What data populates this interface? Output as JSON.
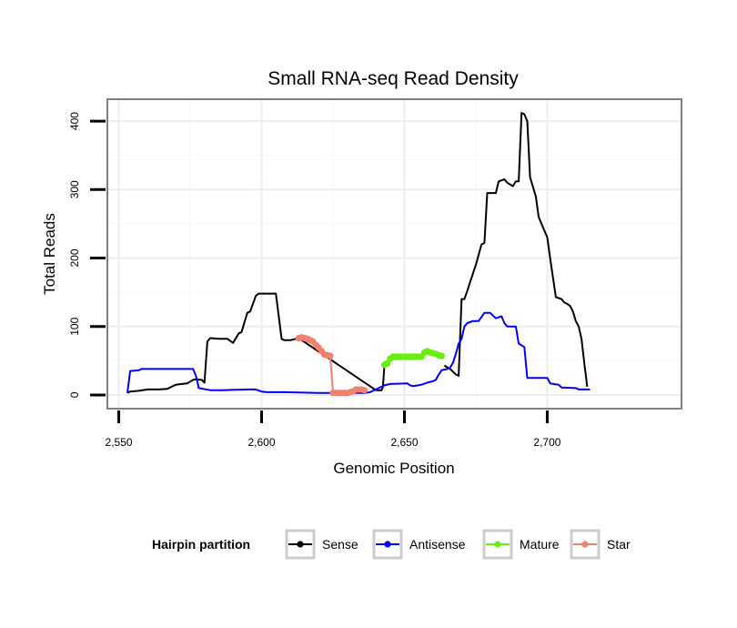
{
  "chart_data": {
    "type": "line",
    "title": "Small RNA-seq Read Density",
    "xlabel": "Genomic Position",
    "ylabel": "Total Reads",
    "xlim": [
      2546,
      2747
    ],
    "ylim": [
      -20,
      432
    ],
    "x_ticks": [
      {
        "value": 2550,
        "label": "2,550"
      },
      {
        "value": 2600,
        "label": "2,600"
      },
      {
        "value": 2650,
        "label": "2,650"
      },
      {
        "value": 2700,
        "label": "2,700"
      }
    ],
    "y_ticks": [
      {
        "value": 0,
        "label": "0"
      },
      {
        "value": 100,
        "label": "100"
      },
      {
        "value": 200,
        "label": "200"
      },
      {
        "value": 300,
        "label": "300"
      },
      {
        "value": 400,
        "label": "400"
      }
    ],
    "legend": {
      "title": "Hairpin partition",
      "position": "bottom",
      "entries": [
        {
          "name": "Sense",
          "color": "#000000"
        },
        {
          "name": "Antisense",
          "color": "#0000ff"
        },
        {
          "name": "Mature",
          "color": "#66ee11"
        },
        {
          "name": "Star",
          "color": "#f08070"
        }
      ]
    },
    "series": [
      {
        "name": "Sense",
        "color": "#000000",
        "points": false,
        "x": [
          2553,
          2554,
          2557,
          2560,
          2564,
          2567,
          2570,
          2572,
          2574,
          2576,
          2577,
          2579,
          2580,
          2581,
          2582,
          2585,
          2588,
          2590,
          2592,
          2593,
          2595,
          2596,
          2598,
          2599,
          2601,
          2602,
          2605,
          2607,
          2608,
          2610,
          2612,
          2613,
          2640,
          2642,
          2642.5,
          2643
        ],
        "y": [
          3,
          5,
          6,
          8,
          8,
          9,
          15,
          16,
          17,
          22,
          23,
          22,
          18,
          78,
          83,
          82,
          82,
          76,
          90,
          92,
          120,
          122,
          145,
          148,
          148,
          148,
          148,
          82,
          80,
          80,
          82,
          83,
          7,
          7,
          12,
          44
        ]
      },
      {
        "name": "Sense",
        "color": "#000000",
        "points": false,
        "x": [
          2664,
          2666,
          2668,
          2669,
          2670,
          2671,
          2672,
          2673,
          2675,
          2677,
          2678,
          2679,
          2680,
          2682,
          2683,
          2685,
          2686,
          2688,
          2689,
          2690,
          2691,
          2692,
          2693,
          2694,
          2696,
          2697,
          2699,
          2700,
          2701,
          2703,
          2705,
          2706,
          2707,
          2708,
          2709,
          2710,
          2711,
          2712,
          2713,
          2714
        ],
        "y": [
          43,
          38,
          30,
          28,
          140,
          140,
          152,
          165,
          190,
          220,
          222,
          295,
          295,
          295,
          312,
          315,
          310,
          305,
          312,
          312,
          412,
          410,
          400,
          318,
          290,
          260,
          240,
          230,
          200,
          143,
          140,
          135,
          133,
          130,
          122,
          108,
          100,
          82,
          45,
          12
        ]
      },
      {
        "name": "Antisense",
        "color": "#0000ff",
        "points": false,
        "x": [
          2553,
          2554,
          2557,
          2558,
          2565,
          2572,
          2576,
          2577,
          2578,
          2582,
          2586,
          2596,
          2598,
          2600,
          2602,
          2608,
          2620,
          2625,
          2633,
          2636,
          2638,
          2641,
          2643,
          2645,
          2651,
          2652,
          2653,
          2656,
          2658,
          2660,
          2661,
          2662,
          2663,
          2665,
          2666,
          2667,
          2668,
          2669,
          2670,
          2671,
          2672,
          2674,
          2676,
          2678,
          2680,
          2682,
          2684,
          2685,
          2686,
          2689,
          2690,
          2692,
          2693,
          2700,
          2701,
          2704,
          2705,
          2710,
          2711,
          2714,
          2715
        ],
        "y": [
          3,
          35,
          36,
          38,
          38,
          38,
          38,
          28,
          10,
          7,
          7,
          8,
          8,
          5,
          4,
          4,
          3,
          3,
          3,
          3,
          4,
          10,
          14,
          16,
          17,
          14,
          13,
          15,
          18,
          20,
          22,
          30,
          36,
          38,
          40,
          47,
          60,
          75,
          82,
          100,
          105,
          108,
          108,
          120,
          120,
          112,
          115,
          105,
          100,
          100,
          75,
          70,
          25,
          25,
          17,
          15,
          11,
          10,
          8,
          8,
          8
        ]
      },
      {
        "name": "Mature",
        "color": "#66ee11",
        "points": true,
        "x": [
          2643,
          2644,
          2645,
          2646,
          2647,
          2648,
          2649,
          2650,
          2651,
          2652,
          2653,
          2654,
          2655,
          2656,
          2657,
          2658,
          2659,
          2660,
          2661,
          2662,
          2663
        ],
        "y": [
          44,
          46,
          53,
          56,
          56,
          56,
          56,
          56,
          56,
          56,
          56,
          56,
          56,
          56,
          62,
          64,
          62,
          61,
          60,
          58,
          57
        ]
      },
      {
        "name": "Star",
        "color": "#f08070",
        "points": true,
        "x": [
          2613,
          2614,
          2615,
          2616,
          2617,
          2618,
          2619,
          2620,
          2621,
          2622,
          2623,
          2624,
          2625,
          2626,
          2627,
          2628,
          2629,
          2630,
          2631,
          2632,
          2633,
          2634,
          2635,
          2636
        ],
        "y": [
          83,
          84,
          83,
          82,
          80,
          78,
          73,
          69,
          64,
          59,
          58,
          57,
          3,
          3,
          3,
          3,
          3,
          3,
          4,
          5,
          8,
          8,
          8,
          7
        ]
      }
    ]
  }
}
